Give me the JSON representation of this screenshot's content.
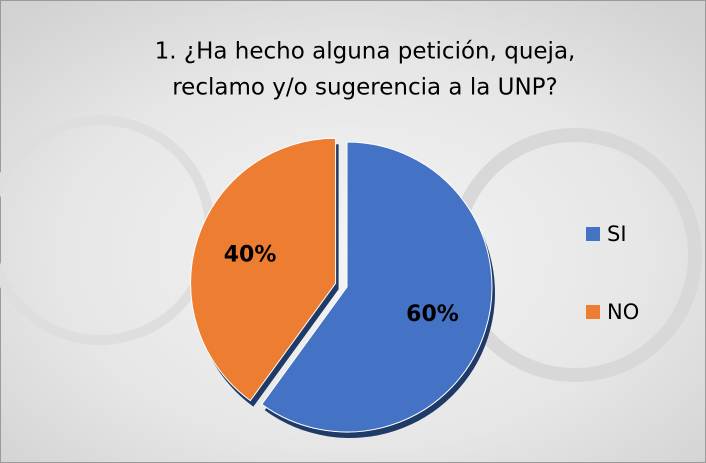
{
  "chart_data": {
    "type": "pie",
    "title": [
      "1. ¿Ha hecho  alguna petición, queja,",
      "reclamo y/o sugerencia a la UNP?"
    ],
    "categories": [
      "SI",
      "NO"
    ],
    "values": [
      60,
      40
    ],
    "value_labels": [
      "60%",
      "40%"
    ],
    "colors": [
      "#4472c4",
      "#ed7d31"
    ],
    "legend": "right"
  }
}
